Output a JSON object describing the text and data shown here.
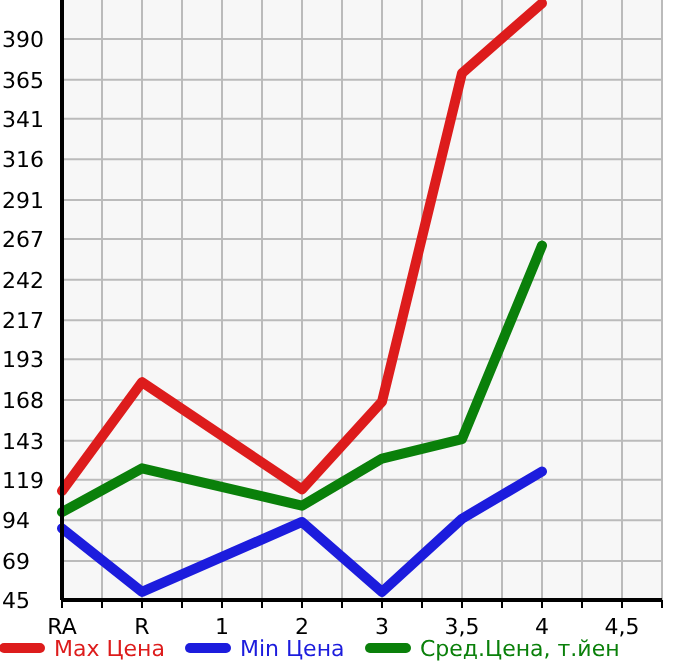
{
  "chart_data": {
    "type": "line",
    "categories": [
      "RA",
      "R",
      "1",
      "2",
      "3",
      "3,5",
      "4",
      "4,5"
    ],
    "series": [
      {
        "name": "Max Цена",
        "color": "#dd1c1c",
        "values": [
          112,
          179,
          null,
          113,
          167,
          369,
          412,
          null
        ]
      },
      {
        "name": "Min Цена",
        "color": "#1c1cdd",
        "values": [
          89,
          50,
          null,
          93,
          50,
          95,
          124,
          null
        ]
      },
      {
        "name": "Сред.Цена, т.йен",
        "color": "#0a800a",
        "values": [
          99,
          126,
          null,
          103,
          132,
          144,
          263,
          null
        ]
      }
    ],
    "ylim": [
      45,
      414
    ],
    "yticks": [
      45,
      69,
      94,
      119,
      143,
      168,
      193,
      217,
      242,
      267,
      291,
      316,
      341,
      365,
      390
    ],
    "grid": true,
    "legend": "bottom",
    "marker": "none",
    "line_style": "solid"
  }
}
